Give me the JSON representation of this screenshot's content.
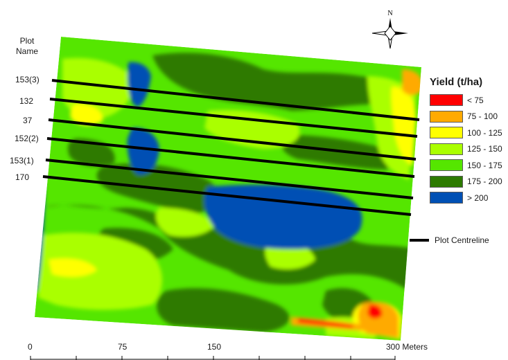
{
  "north_arrow": {
    "label": "N",
    "icon": "north-arrow-icon"
  },
  "plot_header": {
    "line1": "Plot",
    "line2": "Name"
  },
  "plots": [
    {
      "name": "153(3)"
    },
    {
      "name": "132"
    },
    {
      "name": "37"
    },
    {
      "name": "152(2)"
    },
    {
      "name": "153(1)"
    },
    {
      "name": "170"
    }
  ],
  "legend": {
    "title": "Yield (t/ha)",
    "classes": [
      {
        "label": "< 75",
        "color": "#ff0000"
      },
      {
        "label": "75 - 100",
        "color": "#ffaa00"
      },
      {
        "label": "100 - 125",
        "color": "#ffff00"
      },
      {
        "label": "125 - 150",
        "color": "#aaff00"
      },
      {
        "label": "150 - 175",
        "color": "#55e600"
      },
      {
        "label": "175 - 200",
        "color": "#2d7a00"
      },
      {
        "label": "> 200",
        "color": "#0050b4"
      }
    ],
    "centreline_label": "Plot Centreline"
  },
  "scale_bar": {
    "ticks": [
      "0",
      "75",
      "150",
      "300 Meters"
    ]
  }
}
